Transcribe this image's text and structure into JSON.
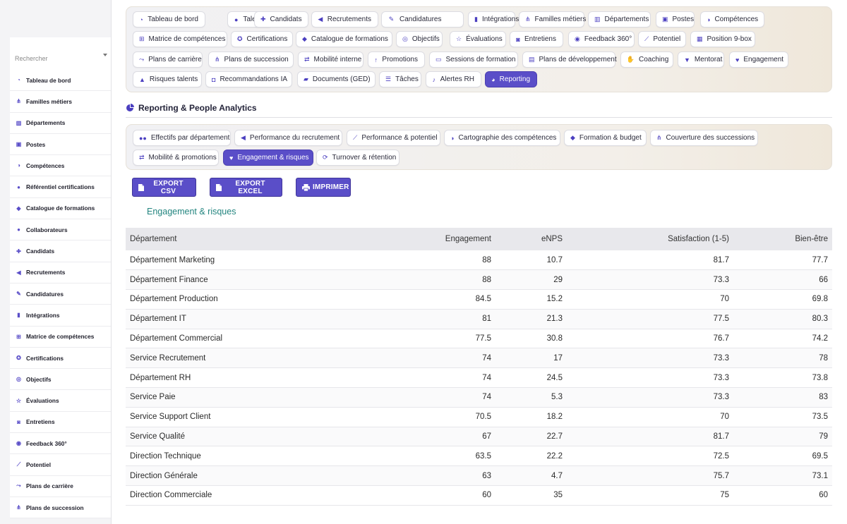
{
  "sidebar": {
    "search_placeholder": "Rechercher",
    "items": [
      {
        "label": "Tableau de bord",
        "icon": "dashboard-icon"
      },
      {
        "label": "Familles métiers",
        "icon": "sitemap-icon"
      },
      {
        "label": "Départements",
        "icon": "building-icon"
      },
      {
        "label": "Postes",
        "icon": "badge-icon"
      },
      {
        "label": "Compétences",
        "icon": "brain-icon"
      },
      {
        "label": "Référentiel certifications",
        "icon": "certificate-icon"
      },
      {
        "label": "Catalogue de formations",
        "icon": "graduation-cap-icon"
      },
      {
        "label": "Collaborateurs",
        "icon": "user-icon"
      },
      {
        "label": "Candidats",
        "icon": "user-plus-icon"
      },
      {
        "label": "Recrutements",
        "icon": "megaphone-icon"
      },
      {
        "label": "Candidatures",
        "icon": "file-signature-icon"
      },
      {
        "label": "Intégrations",
        "icon": "door-icon"
      },
      {
        "label": "Matrice de compétences",
        "icon": "matrix-icon"
      },
      {
        "label": "Certifications",
        "icon": "award-icon"
      },
      {
        "label": "Objectifs",
        "icon": "target-icon"
      },
      {
        "label": "Évaluations",
        "icon": "star-icon"
      },
      {
        "label": "Entretiens",
        "icon": "comments-icon"
      },
      {
        "label": "Feedback 360°",
        "icon": "comment-icon"
      },
      {
        "label": "Potentiel",
        "icon": "chart-line-icon"
      },
      {
        "label": "Plans de carrière",
        "icon": "route-icon"
      },
      {
        "label": "Plans de succession",
        "icon": "sitemap-icon"
      }
    ]
  },
  "nav": {
    "items": [
      {
        "label": "Tableau de bord",
        "icon": "dashboard-icon"
      },
      {
        "label": "Talents",
        "icon": "user-icon"
      },
      {
        "label": "Candidats",
        "icon": "user-plus-icon"
      },
      {
        "label": "Recrutements",
        "icon": "megaphone-icon"
      },
      {
        "label": "Candidatures",
        "icon": "file-signature-icon"
      },
      {
        "label": "Intégrations",
        "icon": "door-icon"
      },
      {
        "label": "Familles métiers",
        "icon": "sitemap-icon"
      },
      {
        "label": "Départements",
        "icon": "building-icon"
      },
      {
        "label": "Postes",
        "icon": "badge-icon"
      },
      {
        "label": "Compétences",
        "icon": "brain-icon"
      },
      {
        "label": "Matrice de compétences",
        "icon": "matrix-icon"
      },
      {
        "label": "Certifications",
        "icon": "award-icon"
      },
      {
        "label": "Catalogue de formations",
        "icon": "graduation-cap-icon"
      },
      {
        "label": "Objectifs",
        "icon": "target-icon"
      },
      {
        "label": "Évaluations",
        "icon": "star-icon"
      },
      {
        "label": "Entretiens",
        "icon": "comments-icon"
      },
      {
        "label": "Feedback 360°",
        "icon": "comment-icon"
      },
      {
        "label": "Potentiel",
        "icon": "chart-line-icon"
      },
      {
        "label": "Position 9-box",
        "icon": "grid-icon"
      },
      {
        "label": "Plans de carrière",
        "icon": "route-icon"
      },
      {
        "label": "Plans de succession",
        "icon": "sitemap-icon"
      },
      {
        "label": "Mobilité interne",
        "icon": "exchange-icon"
      },
      {
        "label": "Promotions",
        "icon": "arrow-up-icon"
      },
      {
        "label": "Sessions de formation",
        "icon": "chalkboard-icon"
      },
      {
        "label": "Plans de développement",
        "icon": "clipboard-icon"
      },
      {
        "label": "Coaching",
        "icon": "handshake-icon"
      },
      {
        "label": "Mentorat",
        "icon": "user-tie-icon"
      },
      {
        "label": "Engagement",
        "icon": "heart-icon"
      },
      {
        "label": "Risques talents",
        "icon": "warning-icon"
      },
      {
        "label": "Recommandations IA",
        "icon": "robot-icon"
      },
      {
        "label": "Documents (GED)",
        "icon": "folder-icon"
      },
      {
        "label": "Tâches",
        "icon": "list-icon"
      },
      {
        "label": "Alertes RH",
        "icon": "bell-icon"
      },
      {
        "label": "Reporting",
        "icon": "pie-chart-icon"
      }
    ]
  },
  "section": {
    "title": "Reporting & People Analytics",
    "icon": "pie-chart-icon"
  },
  "reports": {
    "items": [
      {
        "label": "Effectifs par département",
        "icon": "users-icon"
      },
      {
        "label": "Performance du recrutement",
        "icon": "megaphone-icon"
      },
      {
        "label": "Performance & potentiel",
        "icon": "chart-line-icon"
      },
      {
        "label": "Cartographie des compétences",
        "icon": "brain-icon"
      },
      {
        "label": "Formation & budget",
        "icon": "graduation-cap-icon"
      },
      {
        "label": "Couverture des successions",
        "icon": "sitemap-icon"
      },
      {
        "label": "Mobilité & promotions",
        "icon": "exchange-icon"
      },
      {
        "label": "Engagement & risques",
        "icon": "heart-icon"
      },
      {
        "label": "Turnover & rétention",
        "icon": "sync-icon"
      }
    ]
  },
  "actions": {
    "export_csv": "EXPORT CSV",
    "export_excel": "EXPORT EXCEL",
    "print": "IMPRIMER"
  },
  "table": {
    "title": "Engagement & risques",
    "columns": [
      "Département",
      "Engagement",
      "eNPS",
      "Satisfaction (1-5)",
      "Bien-être"
    ],
    "rows": [
      [
        "Département Marketing",
        "88",
        "10.7",
        "81.7",
        "77.7"
      ],
      [
        "Département Finance",
        "88",
        "29",
        "73.3",
        "66"
      ],
      [
        "Département Production",
        "84.5",
        "15.2",
        "70",
        "69.8"
      ],
      [
        "Département IT",
        "81",
        "21.3",
        "77.5",
        "80.3"
      ],
      [
        "Département Commercial",
        "77.5",
        "30.8",
        "76.7",
        "74.2"
      ],
      [
        "Service Recrutement",
        "74",
        "17",
        "73.3",
        "78"
      ],
      [
        "Département RH",
        "74",
        "24.5",
        "73.3",
        "73.8"
      ],
      [
        "Service Paie",
        "74",
        "5.3",
        "73.3",
        "83"
      ],
      [
        "Service Support Client",
        "70.5",
        "18.2",
        "70",
        "73.5"
      ],
      [
        "Service Qualité",
        "67",
        "22.7",
        "81.7",
        "79"
      ],
      [
        "Direction Technique",
        "63.5",
        "22.2",
        "72.5",
        "69.5"
      ],
      [
        "Direction Générale",
        "63",
        "4.7",
        "75.7",
        "73.1"
      ],
      [
        "Direction Commerciale",
        "60",
        "35",
        "75",
        "60"
      ]
    ]
  },
  "colors": {
    "accent": "#5a4ec8",
    "title_teal": "#23857f"
  }
}
